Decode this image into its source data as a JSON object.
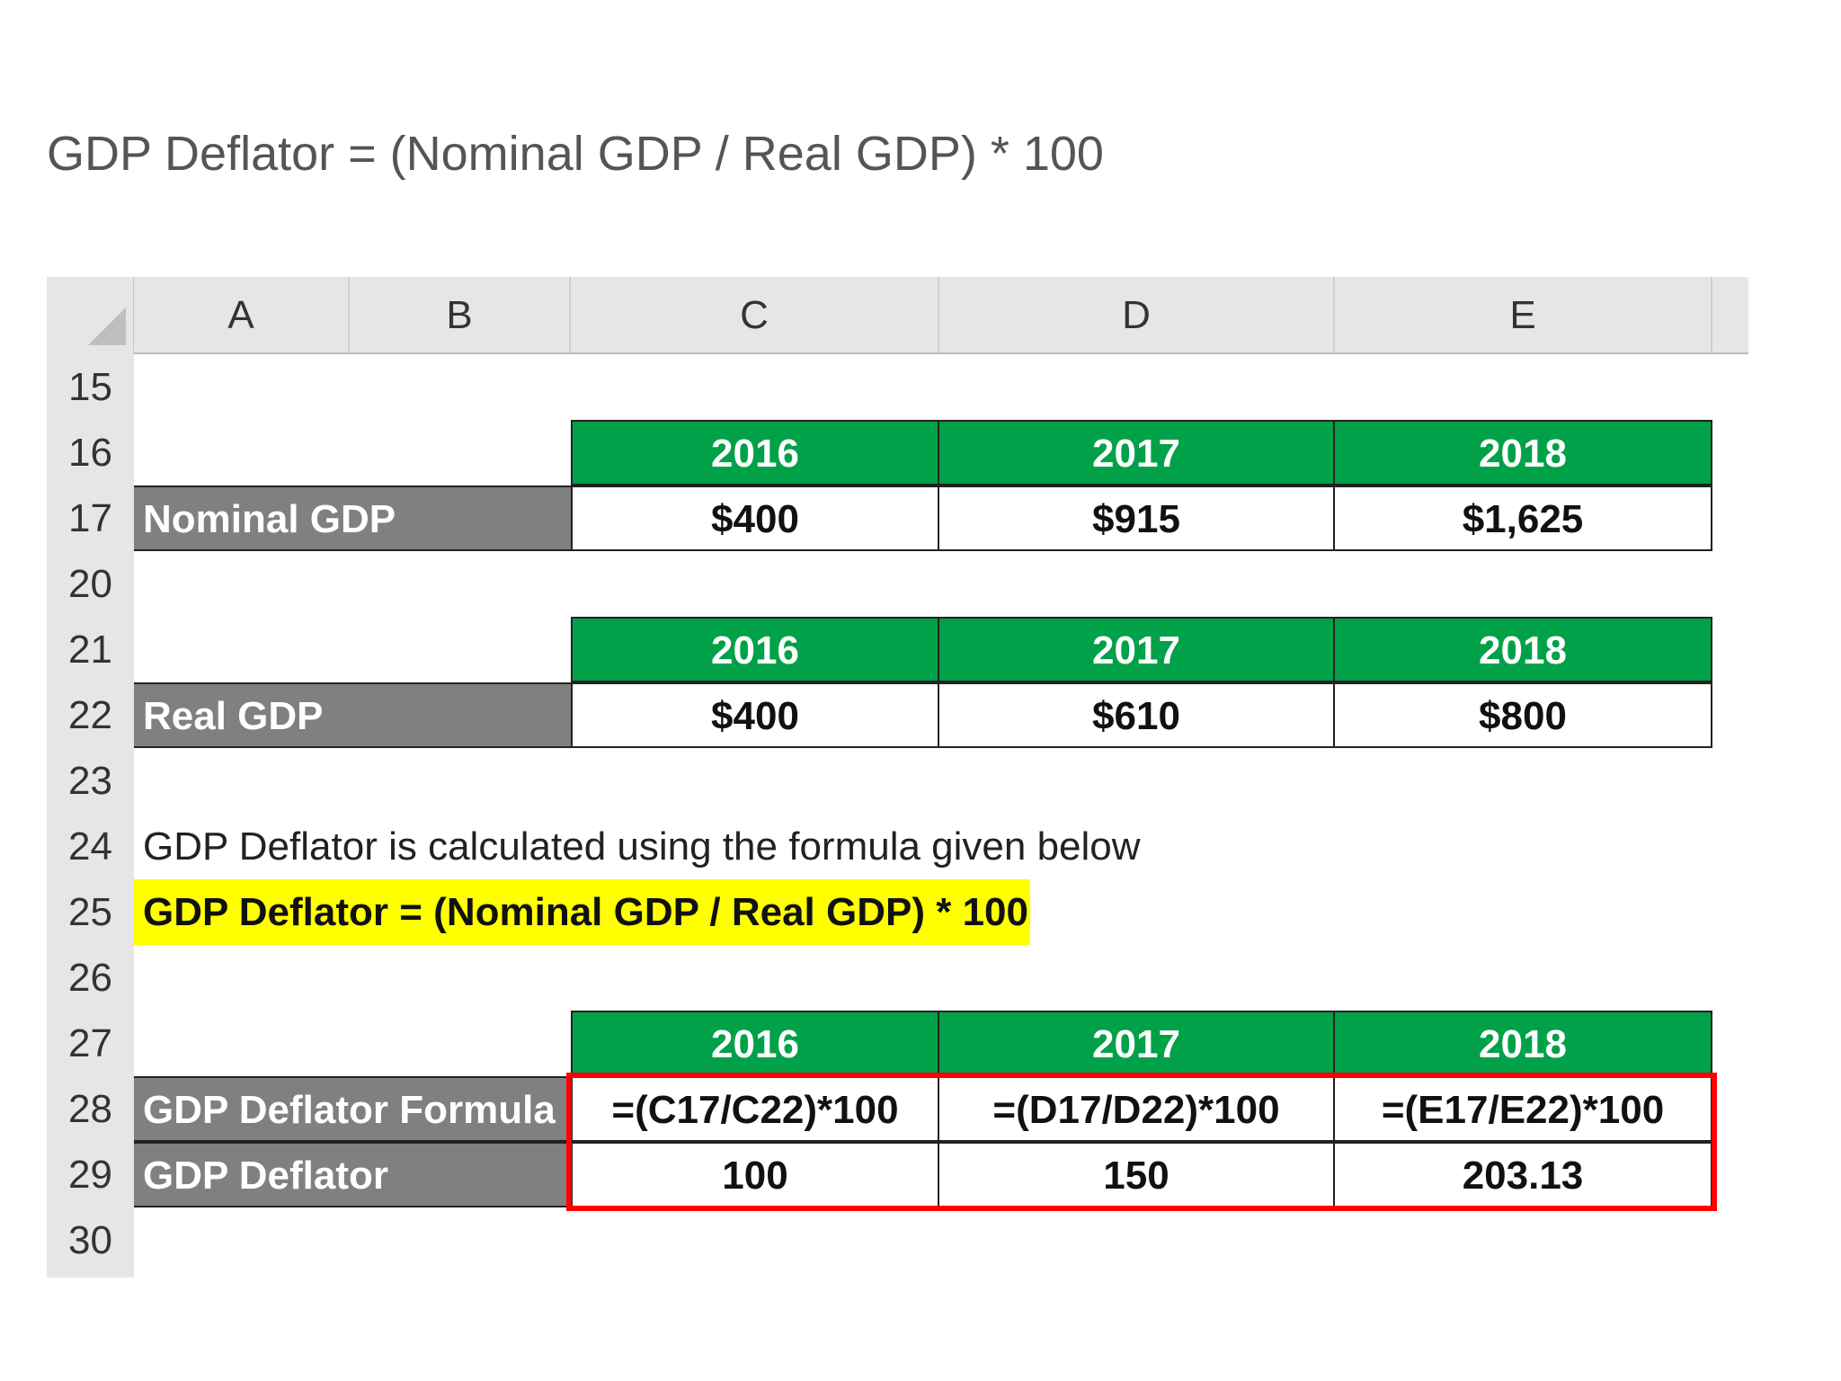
{
  "heading": "GDP Deflator = (Nominal GDP / Real GDP) * 100",
  "columns": [
    "A",
    "B",
    "C",
    "D",
    "E"
  ],
  "rows": [
    "15",
    "16",
    "17",
    "20",
    "21",
    "22",
    "23",
    "24",
    "25",
    "26",
    "27",
    "28",
    "29",
    "30"
  ],
  "nominal_table": {
    "years": [
      "2016",
      "2017",
      "2018"
    ],
    "label": "Nominal GDP",
    "values": [
      "$400",
      "$915",
      "$1,625"
    ]
  },
  "real_table": {
    "years": [
      "2016",
      "2017",
      "2018"
    ],
    "label": "Real GDP",
    "values": [
      "$400",
      "$610",
      "$800"
    ]
  },
  "explanation": "GDP Deflator is calculated using the formula given below",
  "formula_highlight": "GDP Deflator = (Nominal GDP / Real GDP) * 100",
  "deflator_table": {
    "years": [
      "2016",
      "2017",
      "2018"
    ],
    "formula_label": "GDP Deflator Formula",
    "formulas": [
      "=(C17/C22)*100",
      "=(D17/D22)*100",
      "=(E17/E22)*100"
    ],
    "result_label": "GDP Deflator",
    "results": [
      "100",
      "150",
      "203.13"
    ]
  },
  "colors": {
    "header_green": "#00a149",
    "label_gray": "#808080",
    "highlight_yellow": "#ffff00",
    "outline_red": "#ff0000"
  }
}
